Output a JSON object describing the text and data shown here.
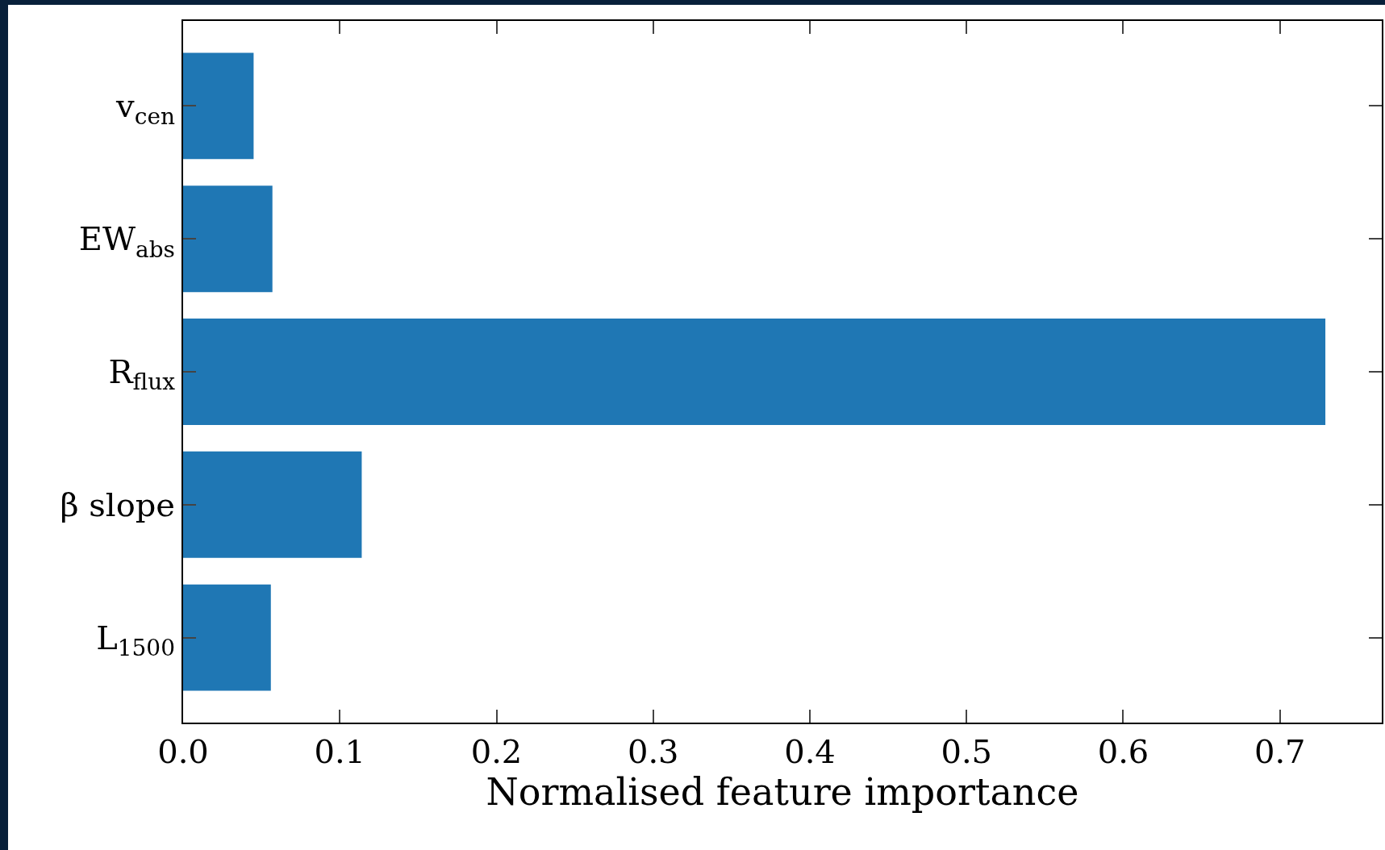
{
  "chart_data": {
    "type": "bar",
    "orientation": "horizontal",
    "xlabel": "Normalised feature importance",
    "categories": [
      "v$_{cen}$",
      "EW$_{abs}$",
      "R$_{flux}$",
      "β slope",
      "L$_{1500}$"
    ],
    "values": [
      0.045,
      0.057,
      0.729,
      0.114,
      0.056
    ],
    "color": "#1f77b4",
    "xlim": [
      0,
      0.765
    ],
    "xticks": [
      {
        "value": 0,
        "label": "0.0"
      },
      0.1,
      0.2,
      0.3,
      0.4,
      0.5,
      0.6,
      0.7
    ],
    "grid": false
  }
}
